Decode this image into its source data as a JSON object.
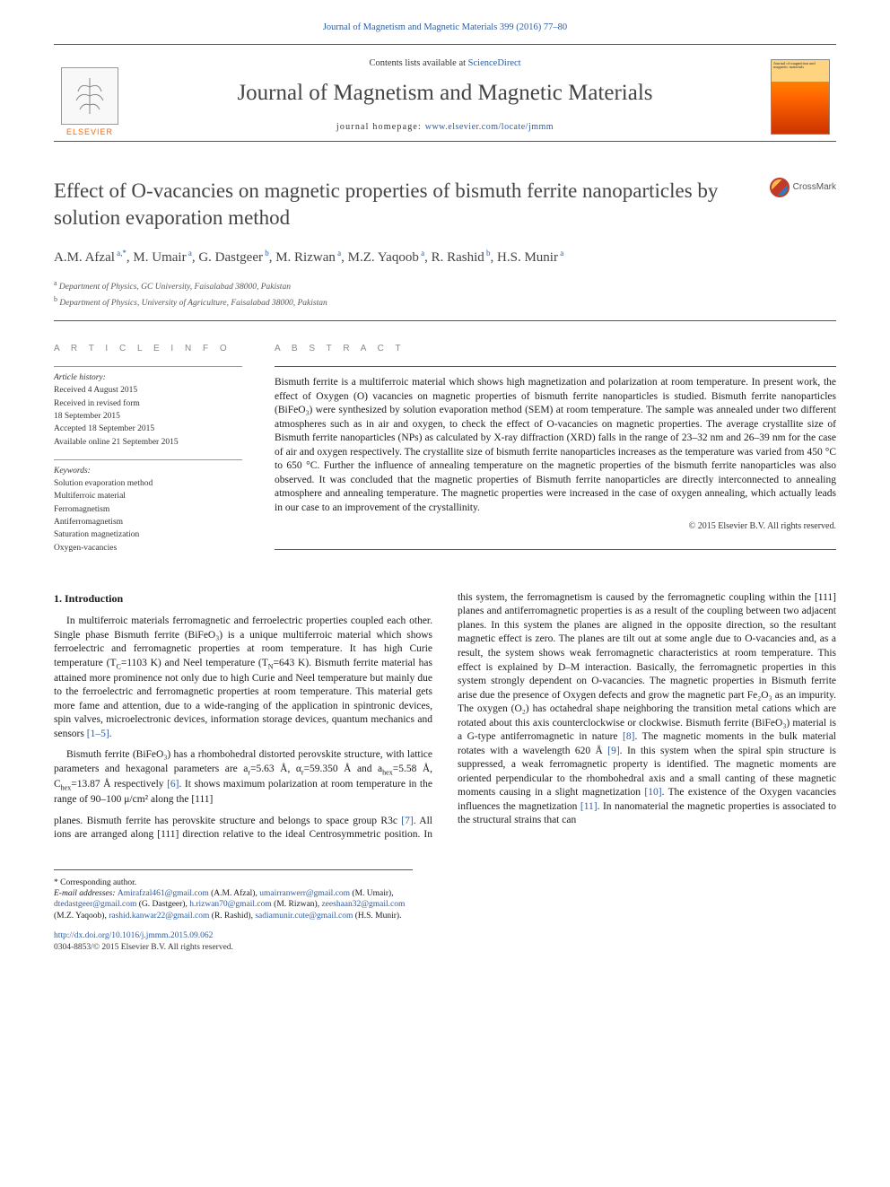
{
  "top_citation": "Journal of Magnetism and Magnetic Materials 399 (2016) 77–80",
  "header": {
    "elsevier_label": "ELSEVIER",
    "contents_prefix": "Contents lists available at ",
    "contents_link": "ScienceDirect",
    "journal_name": "Journal of Magnetism and Magnetic Materials",
    "homepage_prefix": "journal homepage: ",
    "homepage_link": "www.elsevier.com/locate/jmmm",
    "cover_text": "Journal of magnetism and magnetic materials"
  },
  "crossmark_label": "CrossMark",
  "title": "Effect of O-vacancies on magnetic properties of bismuth ferrite nanoparticles by solution evaporation method",
  "authors_html": "A.M. Afzal",
  "authors": [
    {
      "name": "A.M. Afzal",
      "sup": "a,*"
    },
    {
      "name": "M. Umair",
      "sup": "a"
    },
    {
      "name": "G. Dastgeer",
      "sup": "b"
    },
    {
      "name": "M. Rizwan",
      "sup": "a"
    },
    {
      "name": "M.Z. Yaqoob",
      "sup": "a"
    },
    {
      "name": "R. Rashid",
      "sup": "b"
    },
    {
      "name": "H.S. Munir",
      "sup": "a"
    }
  ],
  "affiliations": [
    {
      "sup": "a",
      "text": "Department of Physics, GC University, Faisalabad 38000, Pakistan"
    },
    {
      "sup": "b",
      "text": "Department of Physics, University of Agriculture, Faisalabad 38000, Pakistan"
    }
  ],
  "info": {
    "heading": "A R T I C L E  I N F O",
    "history_label": "Article history:",
    "history": [
      "Received 4 August 2015",
      "Received in revised form",
      "18 September 2015",
      "Accepted 18 September 2015",
      "Available online 21 September 2015"
    ],
    "keywords_label": "Keywords:",
    "keywords": [
      "Solution evaporation method",
      "Multiferroic material",
      "Ferromagnetism",
      "Antiferromagnetism",
      "Saturation magnetization",
      "Oxygen-vacancies"
    ]
  },
  "abstract": {
    "heading": "A B S T R A C T",
    "text": "Bismuth ferrite is a multiferroic material which shows high magnetization and polarization at room temperature. In present work, the effect of Oxygen (O) vacancies on magnetic properties of bismuth ferrite nanoparticles is studied. Bismuth ferrite nanoparticles (BiFeO₃) were synthesized by solution evaporation method (SEM) at room temperature. The sample was annealed under two different atmospheres such as in air and oxygen, to check the effect of O-vacancies on magnetic properties. The average crystallite size of Bismuth ferrite nanoparticles (NPs) as calculated by X-ray diffraction (XRD) falls in the range of 23–32 nm and 26–39 nm for the case of air and oxygen respectively. The crystallite size of bismuth ferrite nanoparticles increases as the temperature was varied from 450 °C to 650 °C. Further the influence of annealing temperature on the magnetic properties of the bismuth ferrite nanoparticles was also observed. It was concluded that the magnetic properties of Bismuth ferrite nanoparticles are directly interconnected to annealing atmosphere and annealing temperature. The magnetic properties were increased in the case of oxygen annealing, which actually leads in our case to an improvement of the crystallinity.",
    "copyright": "© 2015 Elsevier B.V. All rights reserved."
  },
  "body": {
    "section1_heading": "1.  Introduction",
    "p1_a": "In multiferroic materials ferromagnetic and ferroelectric properties coupled each other. Single phase Bismuth ferrite (BiFeO₃) is a unique multiferroic material which shows ferroelectric and ferromagnetic properties at room temperature. It has high Curie temperature (T",
    "p1_b": "=1103 K) and Neel temperature (T",
    "p1_c": "=643 K). Bismuth ferrite material has attained more prominence not only due to high Curie and Neel temperature but mainly due to the ferroelectric and ferromagnetic properties at room temperature. This material gets more fame and attention, due to a wide-ranging of the application in spintronic devices, spin valves, microelectronic devices, information storage devices, quantum mechanics and sensors ",
    "cite1": "[1–5]",
    "p2_a": "Bismuth ferrite (BiFeO₃) has a rhombohedral distorted perovskite structure, with lattice parameters and hexagonal parameters are  a",
    "p2_b": "=5.63 Å, α",
    "p2_c": "=59.350 Å and a",
    "p2_d": "=5.58 Å, C",
    "p2_e": "=13.87 Å respectively ",
    "cite6": "[6]",
    "p2_f": ". It shows maximum polarization at room temperature in the range of 90–100 μ/cm² along the [111]",
    "p3_a": "planes. Bismuth ferrite has perovskite structure and belongs to space group R3c ",
    "cite7": "[7]",
    "p3_b": ". All ions are arranged along [111] direction relative to the ideal Centrosymmetric position. In this system, the ferromagnetism is caused by the ferromagnetic coupling within the [111] planes and antiferromagnetic properties is as a result of the coupling between two adjacent planes. In this system the planes are aligned in the opposite direction, so the resultant magnetic effect is zero. The planes are tilt out at some angle due to O-vacancies and, as a result, the system shows weak ferromagnetic characteristics at room temperature. This effect is explained by D–M interaction. Basically, the ferromagnetic properties in this system strongly dependent on O-vacancies. The magnetic properties in Bismuth ferrite arise due the presence of Oxygen defects and grow the magnetic part Fe₂O₃ as an impurity. The oxygen (O₂) has octahedral shape neighboring the transition metal cations which are rotated about this axis counterclockwise or clockwise. Bismuth ferrite (BiFeO₃) material is a G-type antiferromagnetic in nature ",
    "cite8": "[8]",
    "p3_c": ". The magnetic moments in the bulk material rotates with a wavelength 620 Å ",
    "cite9": "[9]",
    "p3_d": ". In this system when the spiral spin structure is suppressed, a weak ferromagnetic property is identified. The magnetic moments are oriented perpendicular to the rhombohedral axis and a small canting of these magnetic moments causing in a slight magnetization ",
    "cite10": "[10]",
    "p3_e": ". The existence of the Oxygen vacancies influences the magnetization ",
    "cite11": "[11]",
    "p3_f": ". In nanomaterial the magnetic properties is associated to the structural strains that can"
  },
  "footnotes": {
    "corresponding": "* Corresponding author.",
    "email_label": "E-mail addresses: ",
    "emails": [
      {
        "addr": "Amirafzal461@gmail.com",
        "who": "(A.M. Afzal)"
      },
      {
        "addr": "umairranwerr@gmail.com",
        "who": "(M. Umair)"
      },
      {
        "addr": "dtedastgeer@gmail.com",
        "who": "(G. Dastgeer)"
      },
      {
        "addr": "h.rizwan70@gmail.com",
        "who": "(M. Rizwan)"
      },
      {
        "addr": "zeeshaan32@gmail.com",
        "who": "(M.Z. Yaqoob)"
      },
      {
        "addr": "rashid.kanwar22@gmail.com",
        "who": "(R. Rashid)"
      },
      {
        "addr": "sadiamunir.cute@gmail.com",
        "who": "(H.S. Munir)"
      }
    ]
  },
  "bottom": {
    "doi": "http://dx.doi.org/10.1016/j.jmmm.2015.09.062",
    "issn_line": "0304-8853/© 2015 Elsevier B.V. All rights reserved."
  },
  "colors": {
    "link": "#2e5c9e",
    "elsevier_orange": "#ff6600",
    "text": "#1a1a1a",
    "heading_gray": "#444"
  }
}
